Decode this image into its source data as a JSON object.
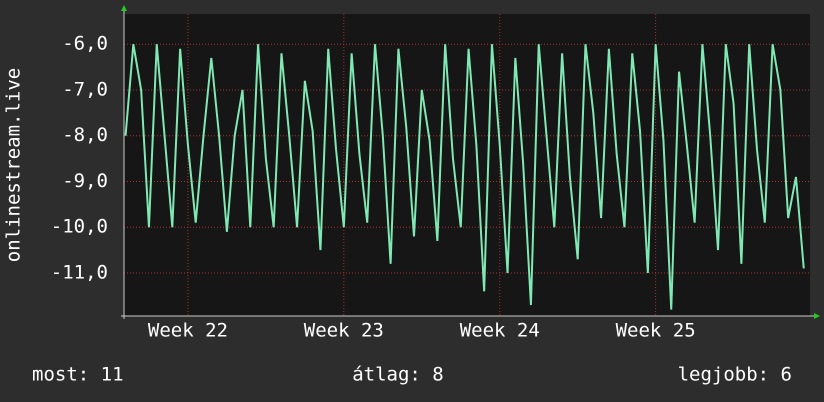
{
  "chart_data": {
    "type": "line",
    "y_label": "onlinestream.live",
    "x": [
      21.6,
      21.65,
      21.7,
      21.75,
      21.8,
      21.85,
      21.9,
      21.95,
      22,
      22.05,
      22.1,
      22.15,
      22.2,
      22.25,
      22.3,
      22.35,
      22.4,
      22.45,
      22.5,
      22.55,
      22.6,
      22.65,
      22.7,
      22.75,
      22.8,
      22.85,
      22.9,
      22.95,
      23,
      23.05,
      23.1,
      23.15,
      23.2,
      23.25,
      23.3,
      23.35,
      23.4,
      23.45,
      23.5,
      23.55,
      23.6,
      23.65,
      23.7,
      23.75,
      23.8,
      23.85,
      23.9,
      23.95,
      24,
      24.05,
      24.1,
      24.15,
      24.2,
      24.25,
      24.3,
      24.35,
      24.4,
      24.45,
      24.5,
      24.55,
      24.6,
      24.65,
      24.7,
      24.75,
      24.8,
      24.85,
      24.9,
      24.95,
      25,
      25.05,
      25.1,
      25.15,
      25.2,
      25.25,
      25.3,
      25.35,
      25.4,
      25.45,
      25.5,
      25.55,
      25.6,
      25.65,
      25.7,
      25.75,
      25.8,
      25.85,
      25.9,
      25.95
    ],
    "values": [
      -8.0,
      -6.0,
      -7.0,
      -10.0,
      -6.0,
      -8.0,
      -10.0,
      -6.1,
      -8.2,
      -9.9,
      -8.0,
      -6.3,
      -8.0,
      -10.1,
      -8.0,
      -7.0,
      -10.0,
      -6.0,
      -8.5,
      -10.0,
      -6.2,
      -8.0,
      -10.0,
      -6.8,
      -7.9,
      -10.5,
      -6.1,
      -8.3,
      -10.0,
      -6.2,
      -8.4,
      -9.9,
      -6.0,
      -8.0,
      -10.8,
      -6.1,
      -7.8,
      -10.2,
      -7.0,
      -8.1,
      -10.3,
      -6.0,
      -8.5,
      -10.0,
      -6.1,
      -8.2,
      -11.4,
      -6.0,
      -8.2,
      -11.0,
      -6.3,
      -8.6,
      -11.7,
      -6.0,
      -8.0,
      -10.0,
      -6.2,
      -8.9,
      -10.7,
      -6.0,
      -7.5,
      -9.8,
      -6.1,
      -8.4,
      -10.0,
      -6.2,
      -7.9,
      -11.0,
      -6.0,
      -8.1,
      -11.8,
      -6.6,
      -8.2,
      -9.9,
      -6.0,
      -8.0,
      -10.5,
      -6.0,
      -7.3,
      -10.8,
      -6.0,
      -8.3,
      -9.9,
      -6.0,
      -7.0,
      -9.8,
      -8.9,
      -10.9
    ],
    "color": "#7fe8b3",
    "xlim": [
      21.59,
      25.99
    ],
    "xticks": [
      {
        "value": 22,
        "label": "Week 22"
      },
      {
        "value": 23,
        "label": "Week 23"
      },
      {
        "value": 24,
        "label": "Week 24"
      },
      {
        "value": 25,
        "label": "Week 25"
      }
    ],
    "ylim": [
      -11.94,
      -5.34
    ],
    "yticks": [
      {
        "value": -11,
        "label": "-11,0"
      },
      {
        "value": -10,
        "label": "-10,0"
      },
      {
        "value": -9,
        "label": "-9,0"
      },
      {
        "value": -8,
        "label": "-8,0"
      },
      {
        "value": -7,
        "label": "-7,0"
      },
      {
        "value": -6,
        "label": "-6,0"
      }
    ],
    "grid": true,
    "footer": [
      "most: 11",
      "átlag: 8",
      "legjobb: 6"
    ]
  }
}
